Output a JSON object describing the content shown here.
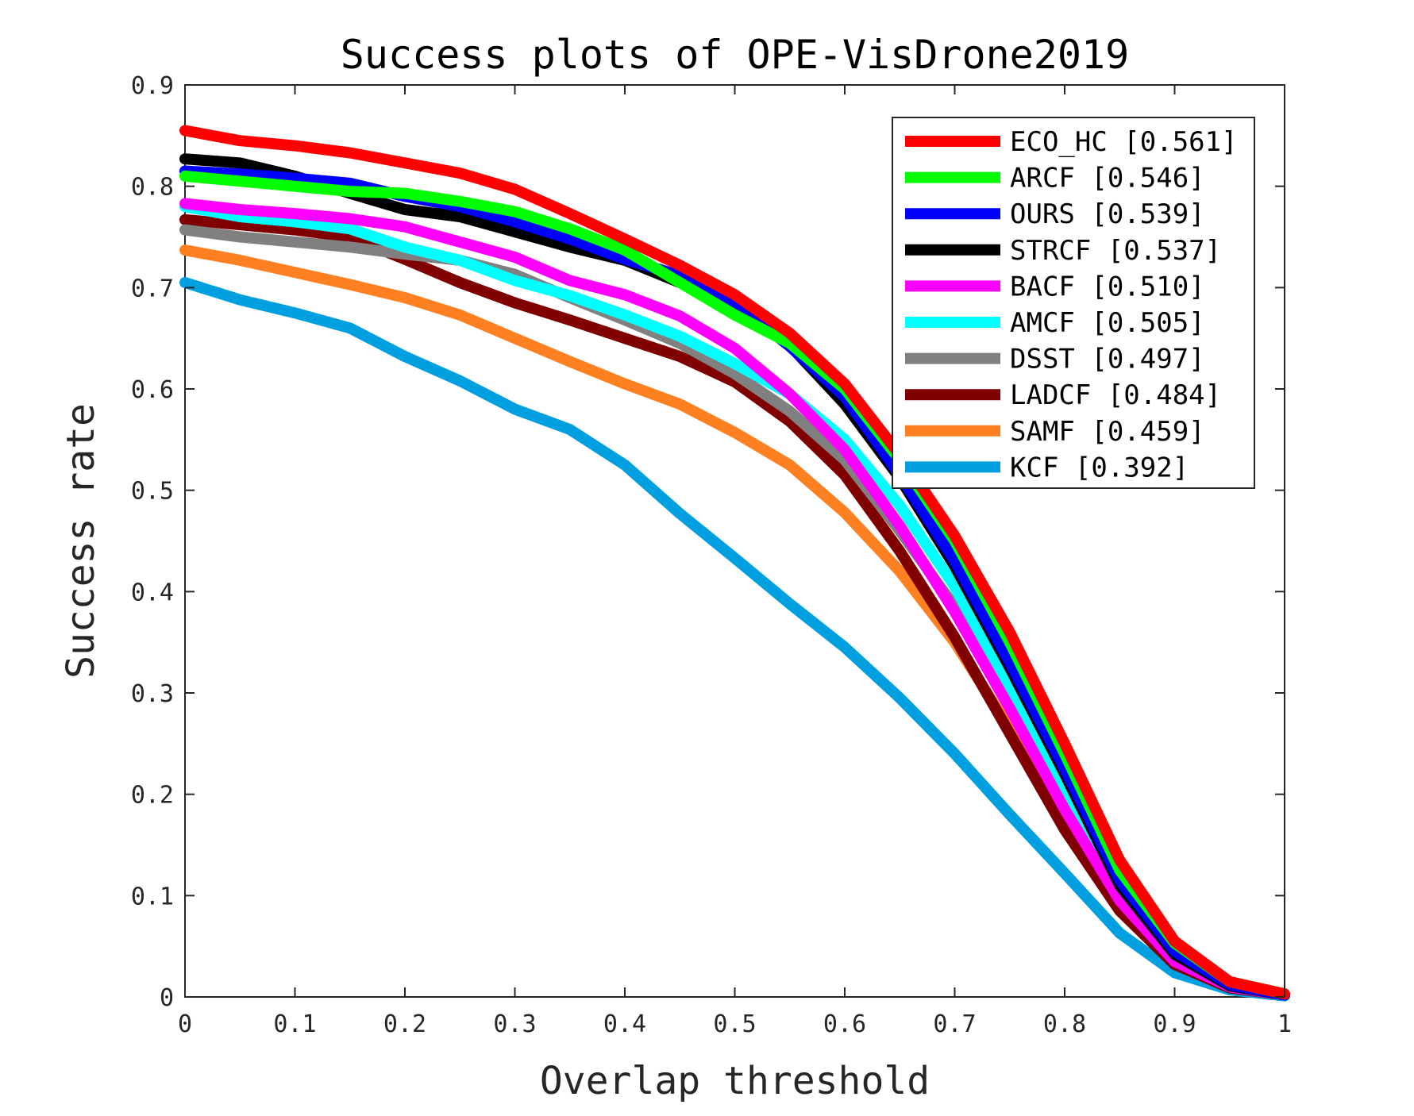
{
  "chart_data": {
    "type": "line",
    "title": "Success plots of OPE-VisDrone2019",
    "xlabel": "Overlap threshold",
    "ylabel": "Success rate",
    "xlim": [
      0,
      1
    ],
    "ylim": [
      0,
      0.9
    ],
    "xticks": [
      "0",
      "0.1",
      "0.2",
      "0.3",
      "0.4",
      "0.5",
      "0.6",
      "0.7",
      "0.8",
      "0.9",
      "1"
    ],
    "yticks": [
      "0",
      "0.1",
      "0.2",
      "0.3",
      "0.4",
      "0.5",
      "0.6",
      "0.7",
      "0.8",
      "0.9"
    ],
    "grid": false,
    "legend_position": "top-right",
    "x": [
      0,
      0.05,
      0.1,
      0.15,
      0.2,
      0.25,
      0.3,
      0.35,
      0.4,
      0.45,
      0.5,
      0.55,
      0.6,
      0.65,
      0.7,
      0.75,
      0.8,
      0.85,
      0.9,
      0.95,
      1
    ],
    "series": [
      {
        "name": "ECO_HC",
        "score": "[0.561]",
        "color": "#ff0000",
        "values": [
          0.855,
          0.845,
          0.84,
          0.833,
          0.823,
          0.813,
          0.797,
          0.773,
          0.748,
          0.722,
          0.693,
          0.655,
          0.605,
          0.535,
          0.455,
          0.36,
          0.25,
          0.135,
          0.055,
          0.015,
          0.003
        ]
      },
      {
        "name": "ARCF",
        "score": "[0.546]",
        "color": "#00ff00",
        "values": [
          0.81,
          0.805,
          0.8,
          0.795,
          0.793,
          0.785,
          0.775,
          0.758,
          0.737,
          0.705,
          0.673,
          0.645,
          0.6,
          0.53,
          0.45,
          0.35,
          0.24,
          0.125,
          0.053,
          0.015,
          0.003
        ]
      },
      {
        "name": "OURS",
        "score": "[0.539]",
        "color": "#0000ff",
        "values": [
          0.815,
          0.812,
          0.808,
          0.803,
          0.79,
          0.78,
          0.765,
          0.748,
          0.728,
          0.712,
          0.685,
          0.642,
          0.592,
          0.515,
          0.43,
          0.33,
          0.225,
          0.115,
          0.045,
          0.012,
          0.002
        ]
      },
      {
        "name": "STRCF",
        "score": "[0.537]",
        "color": "#000000",
        "values": [
          0.827,
          0.823,
          0.81,
          0.793,
          0.777,
          0.77,
          0.755,
          0.74,
          0.727,
          0.705,
          0.683,
          0.643,
          0.585,
          0.512,
          0.425,
          0.325,
          0.22,
          0.11,
          0.042,
          0.011,
          0.002
        ]
      },
      {
        "name": "BACF",
        "score": "[0.510]",
        "color": "#ff00ff",
        "values": [
          0.783,
          0.777,
          0.773,
          0.768,
          0.76,
          0.745,
          0.73,
          0.707,
          0.693,
          0.672,
          0.64,
          0.595,
          0.54,
          0.465,
          0.38,
          0.285,
          0.185,
          0.095,
          0.035,
          0.01,
          0.002
        ]
      },
      {
        "name": "AMCF",
        "score": "[0.505]",
        "color": "#00ffff",
        "values": [
          0.78,
          0.77,
          0.765,
          0.758,
          0.74,
          0.727,
          0.707,
          0.692,
          0.673,
          0.652,
          0.625,
          0.595,
          0.55,
          0.485,
          0.405,
          0.305,
          0.2,
          0.1,
          0.038,
          0.01,
          0.002
        ]
      },
      {
        "name": "DSST",
        "score": "[0.497]",
        "color": "#808080",
        "values": [
          0.757,
          0.75,
          0.745,
          0.74,
          0.733,
          0.727,
          0.713,
          0.69,
          0.668,
          0.645,
          0.615,
          0.578,
          0.53,
          0.46,
          0.385,
          0.295,
          0.2,
          0.105,
          0.04,
          0.011,
          0.002
        ]
      },
      {
        "name": "LADCF",
        "score": "[0.484]",
        "color": "#800000",
        "values": [
          0.767,
          0.762,
          0.757,
          0.75,
          0.728,
          0.705,
          0.685,
          0.668,
          0.65,
          0.632,
          0.607,
          0.568,
          0.515,
          0.44,
          0.355,
          0.26,
          0.165,
          0.085,
          0.032,
          0.009,
          0.002
        ]
      },
      {
        "name": "SAMF",
        "score": "[0.459]",
        "color": "#ff8020",
        "values": [
          0.737,
          0.727,
          0.715,
          0.703,
          0.69,
          0.673,
          0.65,
          0.627,
          0.605,
          0.585,
          0.557,
          0.525,
          0.478,
          0.42,
          0.35,
          0.265,
          0.175,
          0.09,
          0.035,
          0.01,
          0.002
        ]
      },
      {
        "name": "KCF",
        "score": "[0.392]",
        "color": "#00a0e0",
        "values": [
          0.705,
          0.688,
          0.675,
          0.66,
          0.632,
          0.608,
          0.58,
          0.56,
          0.525,
          0.477,
          0.433,
          0.388,
          0.345,
          0.295,
          0.24,
          0.18,
          0.122,
          0.063,
          0.024,
          0.007,
          0.001
        ]
      }
    ]
  }
}
